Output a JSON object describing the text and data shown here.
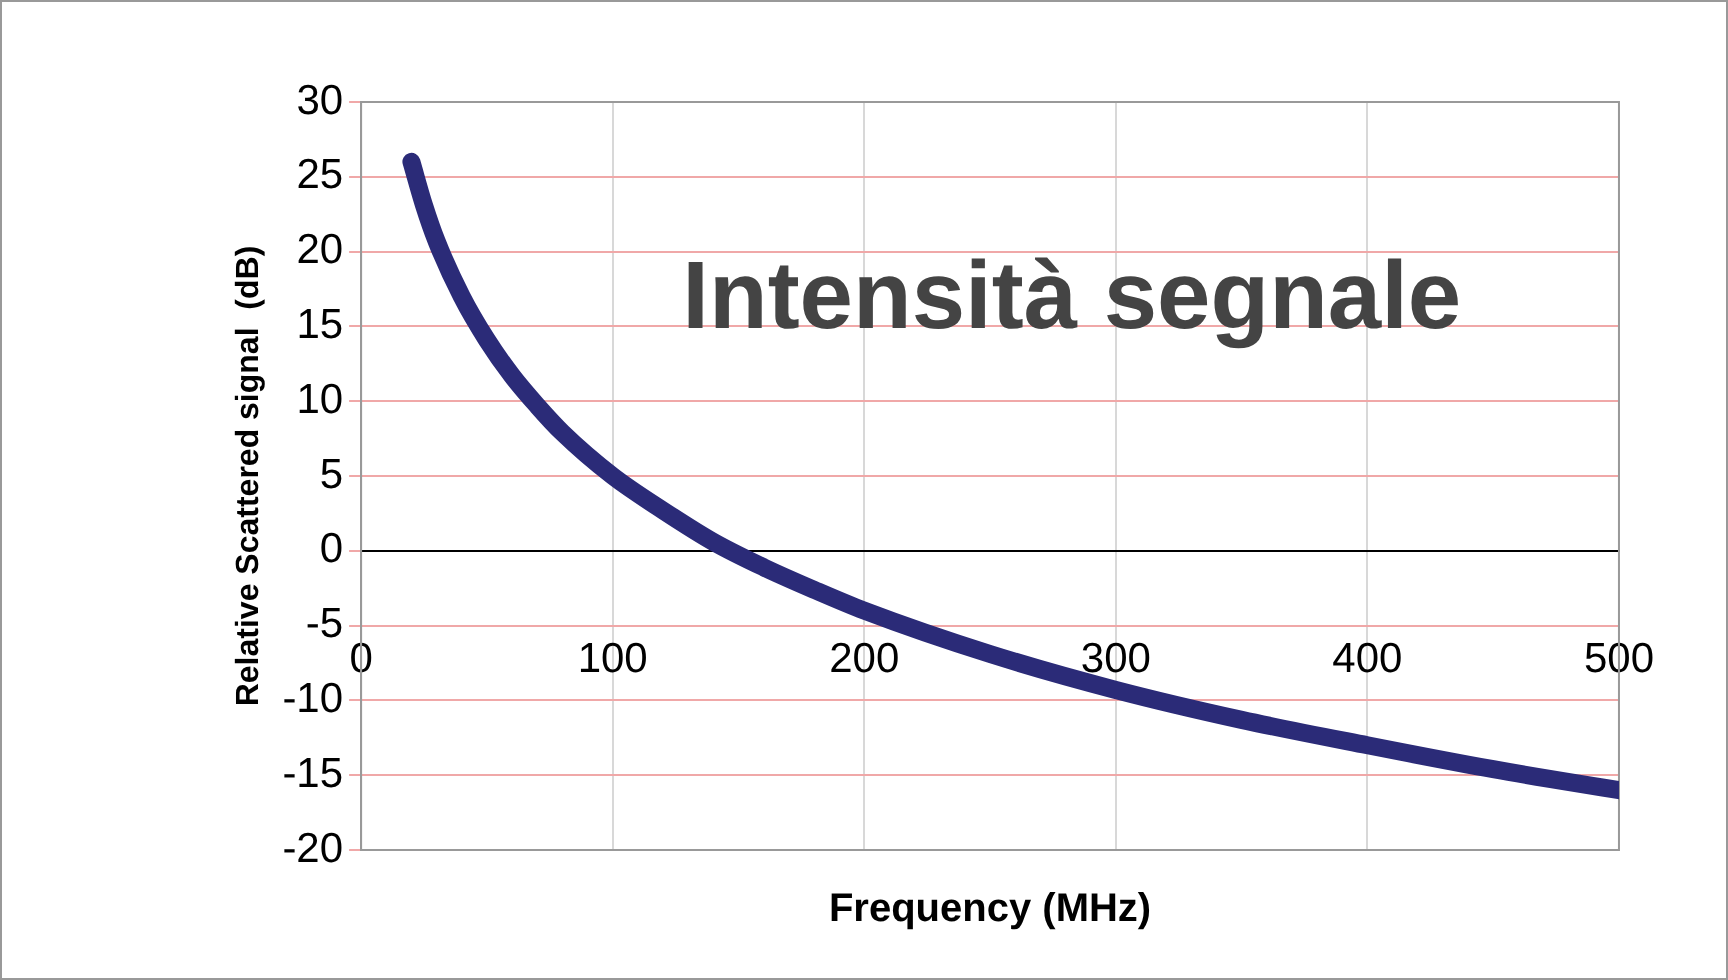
{
  "chart_data": {
    "type": "line",
    "xlabel": "Frequency (MHz)",
    "ylabel": "Relative Scattered signal  (dB)",
    "annotations": [
      "Intensità segnale"
    ],
    "x": [
      20,
      25,
      30,
      40,
      50,
      60,
      70,
      80,
      100,
      120,
      140,
      160,
      180,
      200,
      250,
      300,
      350,
      400,
      450,
      500
    ],
    "series": [
      {
        "color": "#2b2b78",
        "values": [
          26,
          23.1,
          20.7,
          17,
          14.1,
          11.7,
          9.7,
          7.9,
          5,
          2.7,
          0.6,
          -1.1,
          -2.6,
          -4,
          -6.9,
          -9.3,
          -11.3,
          -13,
          -14.6,
          -16
        ]
      }
    ],
    "xlim": [
      0,
      500
    ],
    "xticks": [
      0,
      100,
      200,
      300,
      400,
      500
    ],
    "ylim": [
      -20,
      30
    ],
    "yticks": [
      -20,
      -15,
      -10,
      -5,
      0,
      5,
      10,
      15,
      20,
      25,
      30
    ],
    "grid": true,
    "legend": false,
    "marker": "none",
    "line_style": "solid"
  }
}
